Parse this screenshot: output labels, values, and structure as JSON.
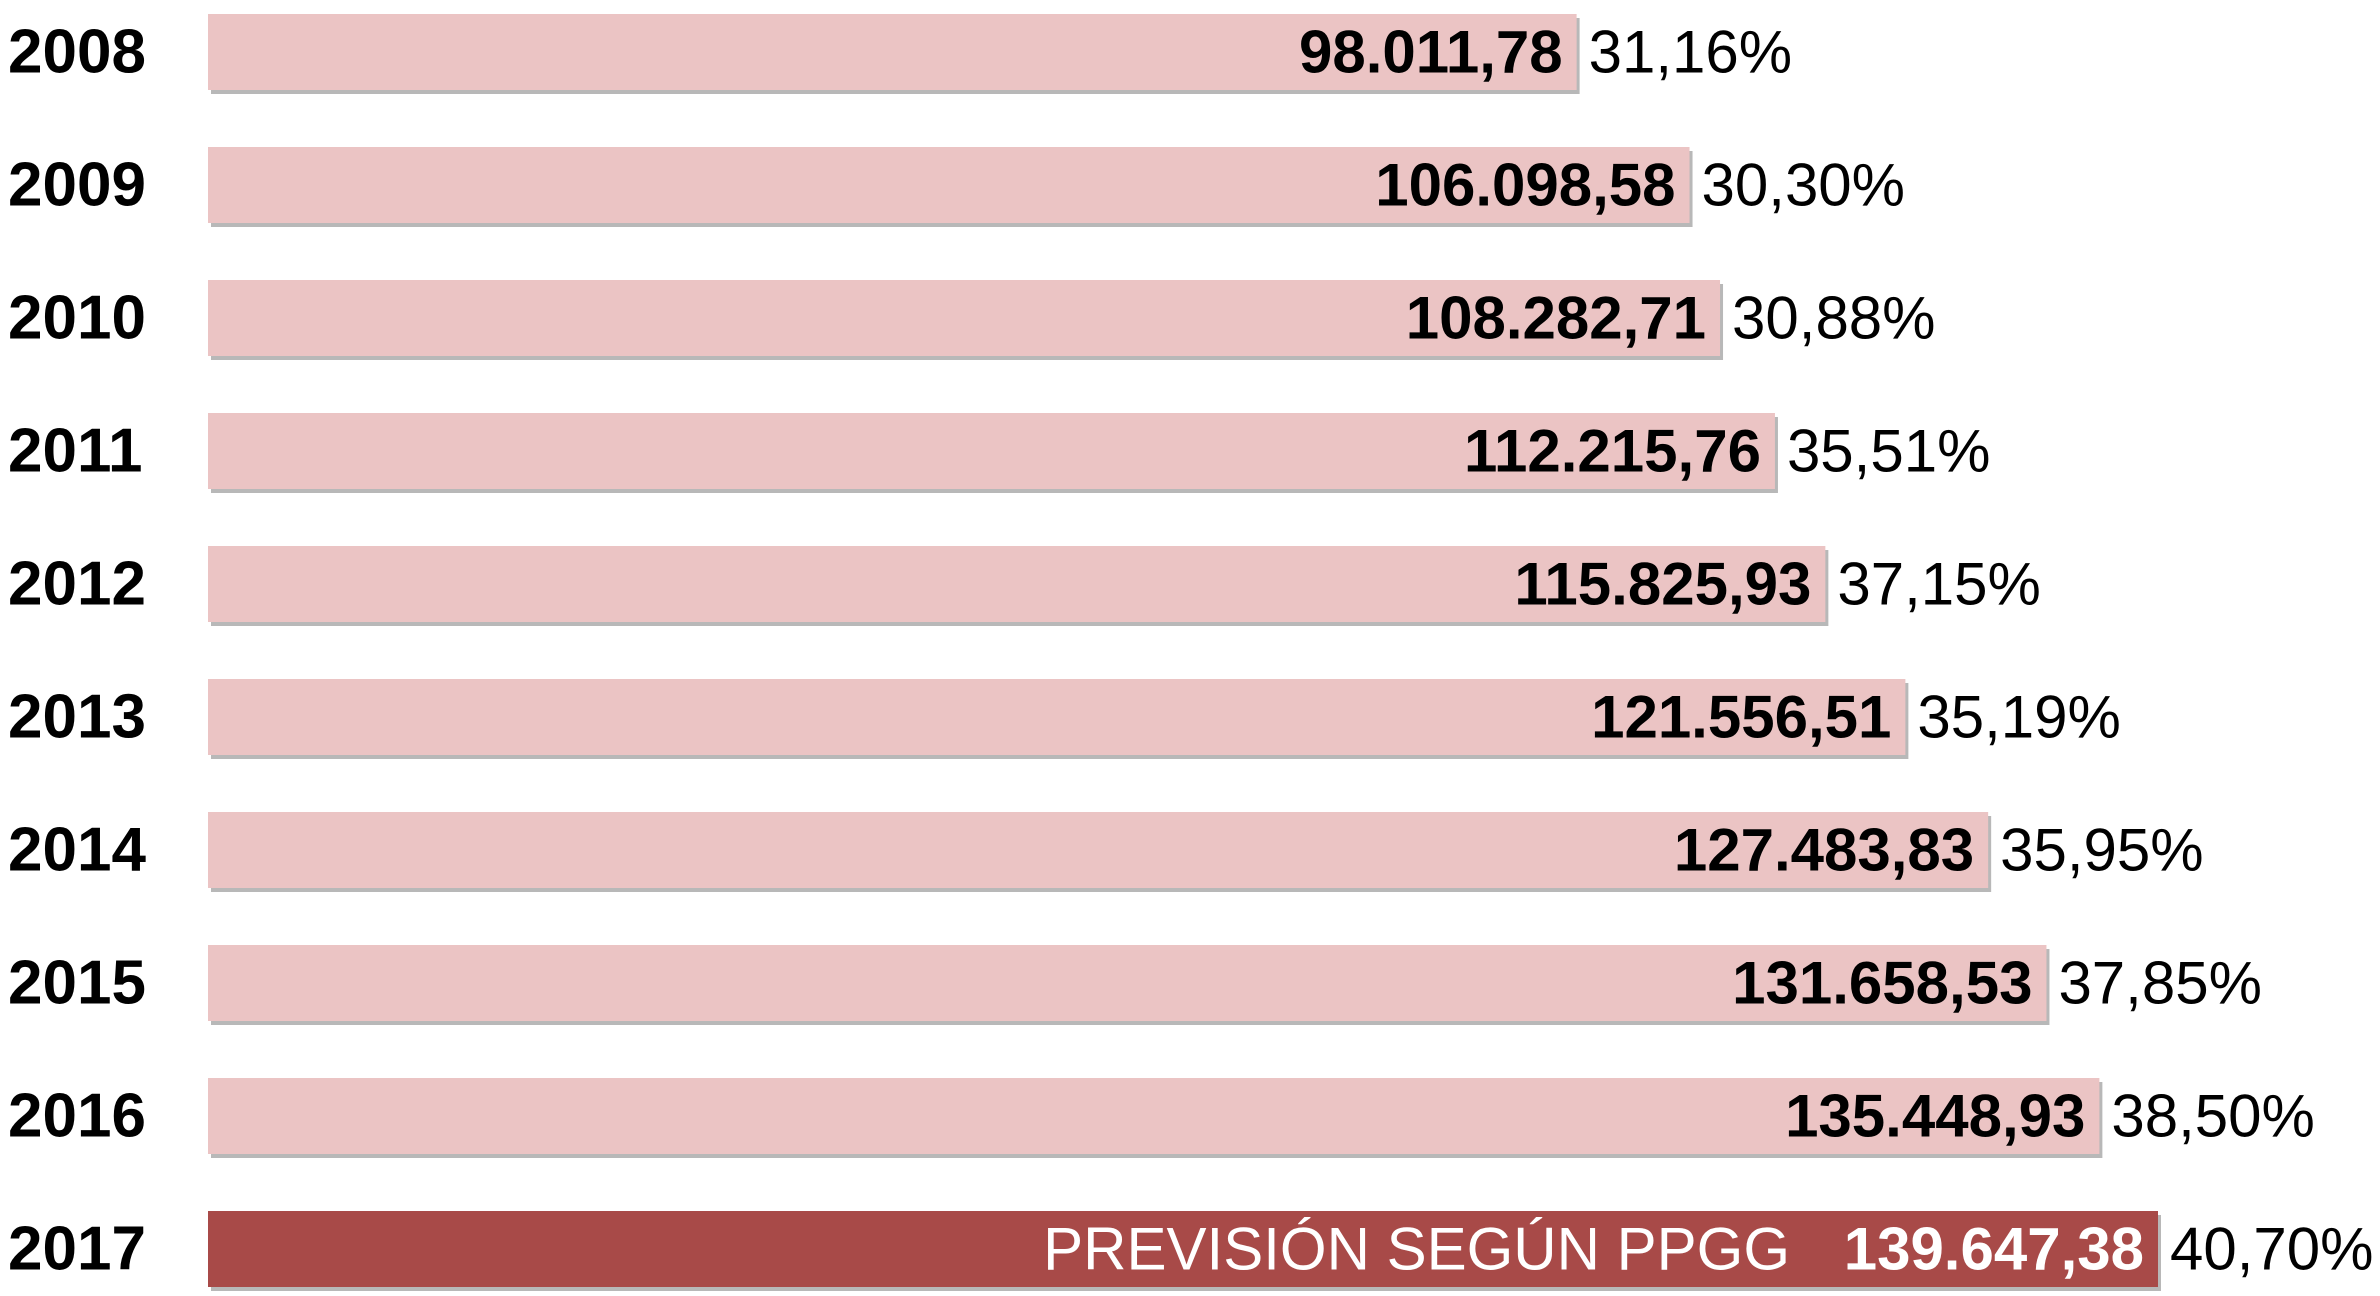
{
  "chart_data": {
    "type": "bar",
    "orientation": "horizontal",
    "categories": [
      "2008",
      "2009",
      "2010",
      "2011",
      "2012",
      "2013",
      "2014",
      "2015",
      "2016",
      "2017"
    ],
    "values": [
      98011.78,
      106098.58,
      108282.71,
      112215.76,
      115825.93,
      121556.51,
      127483.83,
      131658.53,
      135448.93,
      139647.38
    ],
    "value_labels": [
      "98.011,78",
      "106.098,58",
      "108.282,71",
      "112.215,76",
      "115.825,93",
      "121.556,51",
      "127.483,83",
      "131.658,53",
      "135.448,93",
      "139.647,38"
    ],
    "percent_labels": [
      "31,16%",
      "30,30%",
      "30,88%",
      "35,51%",
      "37,15%",
      "35,19%",
      "35,95%",
      "37,85%",
      "38,50%",
      "40,70%"
    ],
    "highlight_index": 9,
    "highlight_note": "PREVISIÓN SEGÚN PPGG",
    "colors": {
      "bar": "#ebc4c4",
      "highlight_bar": "#a84a48",
      "shadow": "#b8b8b8"
    },
    "xlim": [
      0,
      139647.38
    ],
    "grid": false,
    "legend": "none"
  }
}
